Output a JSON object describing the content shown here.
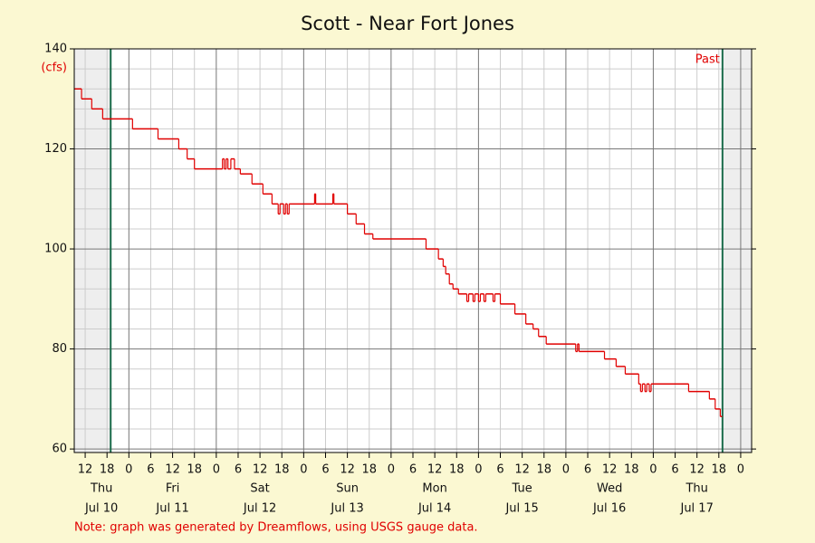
{
  "chart_data": {
    "type": "line",
    "step": true,
    "title": "Scott - Near Fort Jones",
    "y_unit": "(cfs)",
    "note": "Note: graph was generated by Dreamflows, using USGS gauge data.",
    "past_label": "Past",
    "color": "#e00000",
    "x": [
      9,
      11,
      13.8,
      16.8,
      25,
      32,
      37.7,
      40,
      42,
      49.7,
      50.2,
      50.7,
      51.2,
      52,
      53,
      54.6,
      57.8,
      60.8,
      63.3,
      65,
      65.5,
      66.5,
      67,
      67.5,
      68,
      75,
      75.3,
      80,
      80.3,
      84,
      86.4,
      88.7,
      91,
      105.6,
      109,
      110.3,
      111,
      112,
      113,
      114.5,
      116.8,
      117.3,
      118.5,
      119,
      120,
      120.5,
      121.5,
      122,
      124,
      124.5,
      126,
      130,
      133,
      135,
      136.5,
      138.6,
      146.7,
      147.2,
      147.6,
      154.6,
      157.8,
      160.3,
      164,
      164.5,
      165,
      165.7,
      166.2,
      166.9,
      167.4,
      177.7,
      183.4,
      185,
      186.4,
      186.9
    ],
    "values": [
      132,
      130,
      128,
      126,
      124,
      122,
      120,
      118,
      116,
      118,
      116,
      118,
      116,
      118,
      116,
      115,
      113,
      111,
      109,
      107,
      109,
      107,
      109,
      107,
      109,
      111,
      109,
      111,
      109,
      107,
      105,
      103,
      102,
      100,
      98,
      96.5,
      95,
      93,
      92,
      91,
      89.5,
      91,
      89.5,
      91,
      89.5,
      91,
      89.5,
      91,
      89.5,
      91,
      89,
      87,
      85,
      84,
      82.5,
      81,
      79.5,
      81,
      79.5,
      78,
      76.5,
      75,
      73,
      71.5,
      73,
      71.5,
      73,
      71.5,
      73,
      71.5,
      70,
      68,
      66.5,
      66.5
    ],
    "xlim": [
      9,
      195
    ],
    "xticks": [
      12,
      18,
      {
        "value": 24,
        "label": "0"
      },
      {
        "value": 30,
        "label": "6"
      },
      {
        "value": 36,
        "label": "12"
      },
      {
        "value": 42,
        "label": "18"
      },
      {
        "value": 48,
        "label": "0"
      },
      {
        "value": 54,
        "label": "6"
      },
      {
        "value": 60,
        "label": "12"
      },
      {
        "value": 66,
        "label": "18"
      },
      {
        "value": 72,
        "label": "0"
      },
      {
        "value": 78,
        "label": "6"
      },
      {
        "value": 84,
        "label": "12"
      },
      {
        "value": 90,
        "label": "18"
      },
      {
        "value": 96,
        "label": "0"
      },
      {
        "value": 102,
        "label": "6"
      },
      {
        "value": 108,
        "label": "12"
      },
      {
        "value": 114,
        "label": "18"
      },
      {
        "value": 120,
        "label": "0"
      },
      {
        "value": 126,
        "label": "6"
      },
      {
        "value": 132,
        "label": "12"
      },
      {
        "value": 138,
        "label": "18"
      },
      {
        "value": 144,
        "label": "0"
      },
      {
        "value": 150,
        "label": "6"
      },
      {
        "value": 156,
        "label": "12"
      },
      {
        "value": 162,
        "label": "18"
      },
      {
        "value": 168,
        "label": "0"
      },
      {
        "value": 174,
        "label": "6"
      },
      {
        "value": 180,
        "label": "12"
      },
      {
        "value": 186,
        "label": "18"
      },
      {
        "value": 192,
        "label": "0"
      }
    ],
    "days": [
      {
        "weekday": "Thu",
        "date": "Jul 10"
      },
      {
        "weekday": "Fri",
        "date": "Jul 11"
      },
      {
        "weekday": "Sat",
        "date": "Jul 12"
      },
      {
        "weekday": "Sun",
        "date": "Jul 13"
      },
      {
        "weekday": "Mon",
        "date": "Jul 14"
      },
      {
        "weekday": "Tue",
        "date": "Jul 15"
      },
      {
        "weekday": "Wed",
        "date": "Jul 16"
      },
      {
        "weekday": "Thu",
        "date": "Jul 17"
      }
    ],
    "ylim": [
      59.3,
      140
    ],
    "yticks": [
      60,
      80,
      100,
      120,
      140
    ],
    "y_minor_ticks": [
      64,
      68,
      72,
      76,
      84,
      88,
      92,
      96,
      104,
      108,
      112,
      116,
      124,
      128,
      132,
      136
    ],
    "markers": [
      19,
      187
    ],
    "grid": true
  }
}
